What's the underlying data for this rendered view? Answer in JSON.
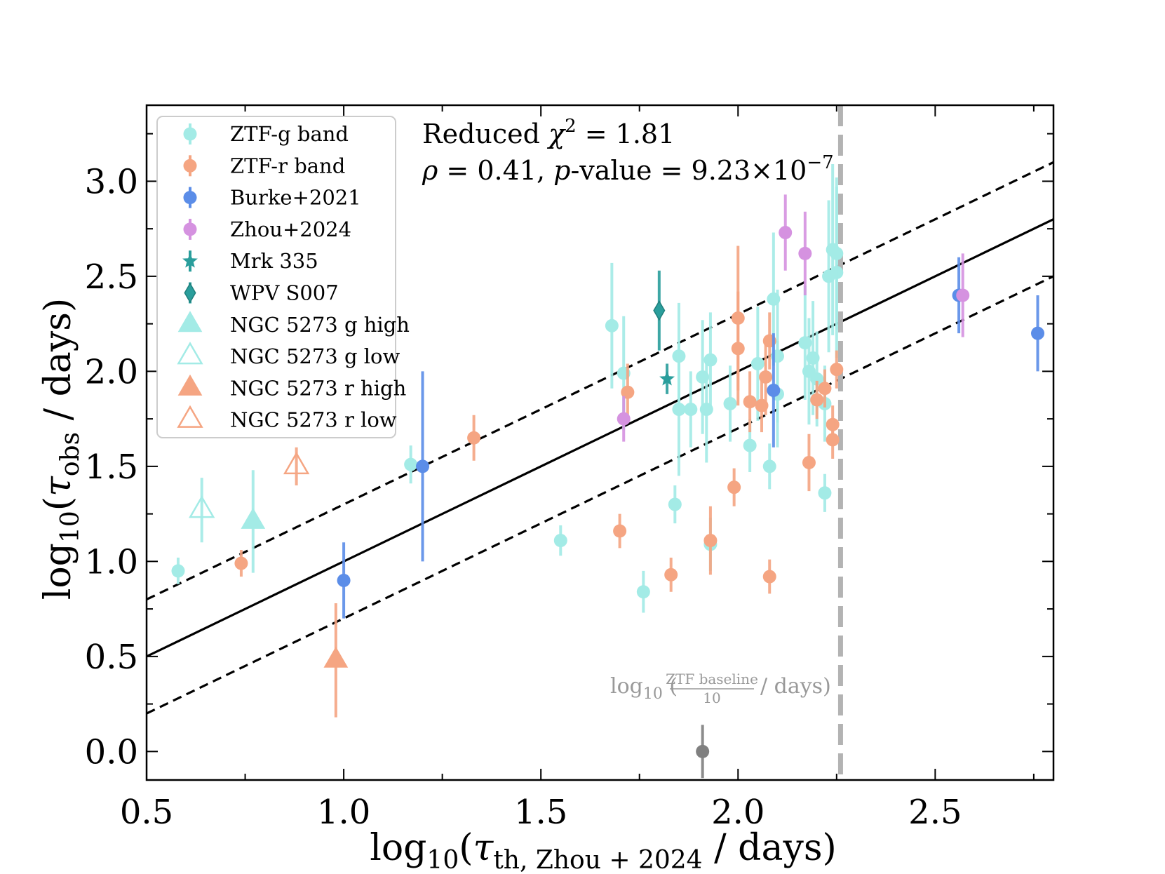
{
  "chart_data": {
    "type": "scatter",
    "xlabel": "log10(τth, Zhou+2024 / days)",
    "ylabel": "log10(τobs / days)",
    "xlim": [
      0.5,
      2.8
    ],
    "ylim": [
      -0.15,
      3.4
    ],
    "xticks": [
      "0.5",
      "1.0",
      "1.5",
      "2.0",
      "2.5"
    ],
    "yticks": [
      "0.0",
      "0.5",
      "1.0",
      "1.5",
      "2.0",
      "2.5",
      "3.0"
    ],
    "colors": {
      "ztf_g": "#a3ebe6",
      "ztf_r": "#f5a582",
      "burke": "#5b8de8",
      "zhou": "#d592e0",
      "teal": "#2a9e9c",
      "gray": "#808080",
      "baseline": "#b3b3b3"
    },
    "annotations": {
      "chi2_prefix": "Reduced ",
      "chi2_symbol": "χ",
      "chi2_exp": "2",
      "chi2_value": " = 1.81",
      "rho_symbol": "ρ",
      "rho_value": " = 0.41, ",
      "p_symbol": "p",
      "p_value": "-value = 9.23×10",
      "p_exp": "−7",
      "baseline_log": "log",
      "baseline_base": "10",
      "baseline_num": "ZTF baseline",
      "baseline_den": "10",
      "baseline_unit": "/ days)"
    },
    "legend": [
      {
        "key": "ztf_g",
        "label": "ZTF-g band",
        "marker": "circle"
      },
      {
        "key": "ztf_r",
        "label": "ZTF-r band",
        "marker": "circle"
      },
      {
        "key": "burke",
        "label": "Burke+2021",
        "marker": "circle"
      },
      {
        "key": "zhou",
        "label": "Zhou+2024",
        "marker": "circle"
      },
      {
        "key": "teal",
        "label": "Mrk 335",
        "marker": "star"
      },
      {
        "key": "teal",
        "label": "WPV S007",
        "marker": "diamond"
      },
      {
        "key": "ztf_g",
        "label": "NGC 5273 g high",
        "marker": "triangle-filled"
      },
      {
        "key": "ztf_g",
        "label": "NGC 5273 g low",
        "marker": "triangle-open"
      },
      {
        "key": "ztf_r",
        "label": "NGC 5273 r high",
        "marker": "triangle-filled"
      },
      {
        "key": "ztf_r",
        "label": "NGC 5273 r low",
        "marker": "triangle-open"
      }
    ],
    "fit_lines": [
      {
        "name": "best-fit",
        "slope": 1.0,
        "intercept": 0.0,
        "style": "solid"
      },
      {
        "name": "upper-bound",
        "slope": 1.0,
        "intercept": 0.3,
        "style": "dashed"
      },
      {
        "name": "lower-bound",
        "slope": 1.0,
        "intercept": -0.3,
        "style": "dashed"
      }
    ],
    "baseline_x": 2.26,
    "series": [
      {
        "name": "ZTF-g band",
        "key": "ztf_g",
        "marker": "circle",
        "points": [
          [
            0.58,
            0.95,
            0.07
          ],
          [
            1.17,
            1.51,
            0.1
          ],
          [
            1.55,
            1.11,
            0.08
          ],
          [
            1.68,
            2.24,
            0.33
          ],
          [
            1.71,
            1.99,
            0.3
          ],
          [
            1.76,
            0.84,
            0.11
          ],
          [
            1.84,
            1.3,
            0.1
          ],
          [
            1.85,
            2.08,
            0.28
          ],
          [
            1.85,
            1.8,
            0.35
          ],
          [
            1.88,
            1.8,
            0.2
          ],
          [
            1.91,
            1.97,
            0.3
          ],
          [
            1.93,
            2.06,
            0.25
          ],
          [
            1.92,
            1.8,
            0.28
          ],
          [
            1.93,
            1.09,
            0.14
          ],
          [
            1.98,
            1.83,
            0.2
          ],
          [
            2.03,
            1.61,
            0.14
          ],
          [
            2.05,
            2.04,
            0.3
          ],
          [
            2.08,
            1.5,
            0.12
          ],
          [
            2.09,
            2.38,
            0.35
          ],
          [
            2.1,
            1.88,
            0.28
          ],
          [
            2.1,
            2.08,
            0.35
          ],
          [
            2.17,
            2.15,
            0.3
          ],
          [
            2.18,
            2.0,
            0.28
          ],
          [
            2.19,
            2.07,
            0.3
          ],
          [
            2.2,
            1.96,
            0.25
          ],
          [
            2.22,
            1.36,
            0.1
          ],
          [
            2.22,
            1.83,
            0.2
          ],
          [
            2.23,
            2.5,
            0.4
          ],
          [
            2.24,
            2.64,
            0.45
          ],
          [
            2.25,
            2.52,
            0.45
          ],
          [
            2.25,
            2.62,
            0.4
          ]
        ]
      },
      {
        "name": "ZTF-r band",
        "key": "ztf_r",
        "marker": "circle",
        "points": [
          [
            0.74,
            0.99,
            0.07
          ],
          [
            1.33,
            1.65,
            0.12
          ],
          [
            1.7,
            1.16,
            0.09
          ],
          [
            1.72,
            1.89,
            0.15
          ],
          [
            1.83,
            0.93,
            0.09
          ],
          [
            1.93,
            1.11,
            0.18
          ],
          [
            1.99,
            1.39,
            0.1
          ],
          [
            2.0,
            2.28,
            0.38
          ],
          [
            2.0,
            2.12,
            0.3
          ],
          [
            2.03,
            1.84,
            0.16
          ],
          [
            2.06,
            1.82,
            0.14
          ],
          [
            2.07,
            1.97,
            0.2
          ],
          [
            2.08,
            2.16,
            0.15
          ],
          [
            2.08,
            0.92,
            0.09
          ],
          [
            2.18,
            1.52,
            0.15
          ],
          [
            2.2,
            1.85,
            0.1
          ],
          [
            2.22,
            1.91,
            0.1
          ],
          [
            2.24,
            1.72,
            0.1
          ],
          [
            2.24,
            1.64,
            0.1
          ],
          [
            2.25,
            2.01,
            0.1
          ]
        ]
      },
      {
        "name": "Burke+2021",
        "key": "burke",
        "marker": "circle",
        "points": [
          [
            1.0,
            0.9,
            0.2
          ],
          [
            1.2,
            1.5,
            0.5
          ],
          [
            2.09,
            1.9,
            0.3
          ],
          [
            2.56,
            2.4,
            0.2
          ],
          [
            2.76,
            2.2,
            0.2
          ]
        ]
      },
      {
        "name": "Zhou+2024",
        "key": "zhou",
        "marker": "circle",
        "points": [
          [
            1.71,
            1.75,
            0.12
          ],
          [
            2.12,
            2.73,
            0.2
          ],
          [
            2.17,
            2.62,
            0.22
          ],
          [
            2.57,
            2.4,
            0.22
          ]
        ]
      },
      {
        "name": "Mrk 335",
        "key": "teal",
        "marker": "star",
        "points": [
          [
            1.82,
            1.96,
            0.08
          ]
        ]
      },
      {
        "name": "WPV S007",
        "key": "teal",
        "marker": "diamond",
        "points": [
          [
            1.8,
            2.32,
            0.21
          ]
        ]
      },
      {
        "name": "NGC 5273 g high",
        "key": "ztf_g",
        "marker": "triangle-filled",
        "points": [
          [
            0.77,
            1.21,
            0.27
          ]
        ]
      },
      {
        "name": "NGC 5273 g low",
        "key": "ztf_g",
        "marker": "triangle-open",
        "points": [
          [
            0.64,
            1.27,
            0.17
          ]
        ]
      },
      {
        "name": "NGC 5273 r high",
        "key": "ztf_r",
        "marker": "triangle-filled",
        "points": [
          [
            0.98,
            0.48,
            0.3
          ]
        ]
      },
      {
        "name": "NGC 5273 r low",
        "key": "ztf_r",
        "marker": "triangle-open",
        "points": [
          [
            0.88,
            1.5,
            0.1
          ]
        ]
      },
      {
        "name": "Outlier",
        "key": "gray",
        "marker": "circle",
        "points": [
          [
            1.91,
            0.0,
            0.14
          ]
        ]
      }
    ]
  }
}
